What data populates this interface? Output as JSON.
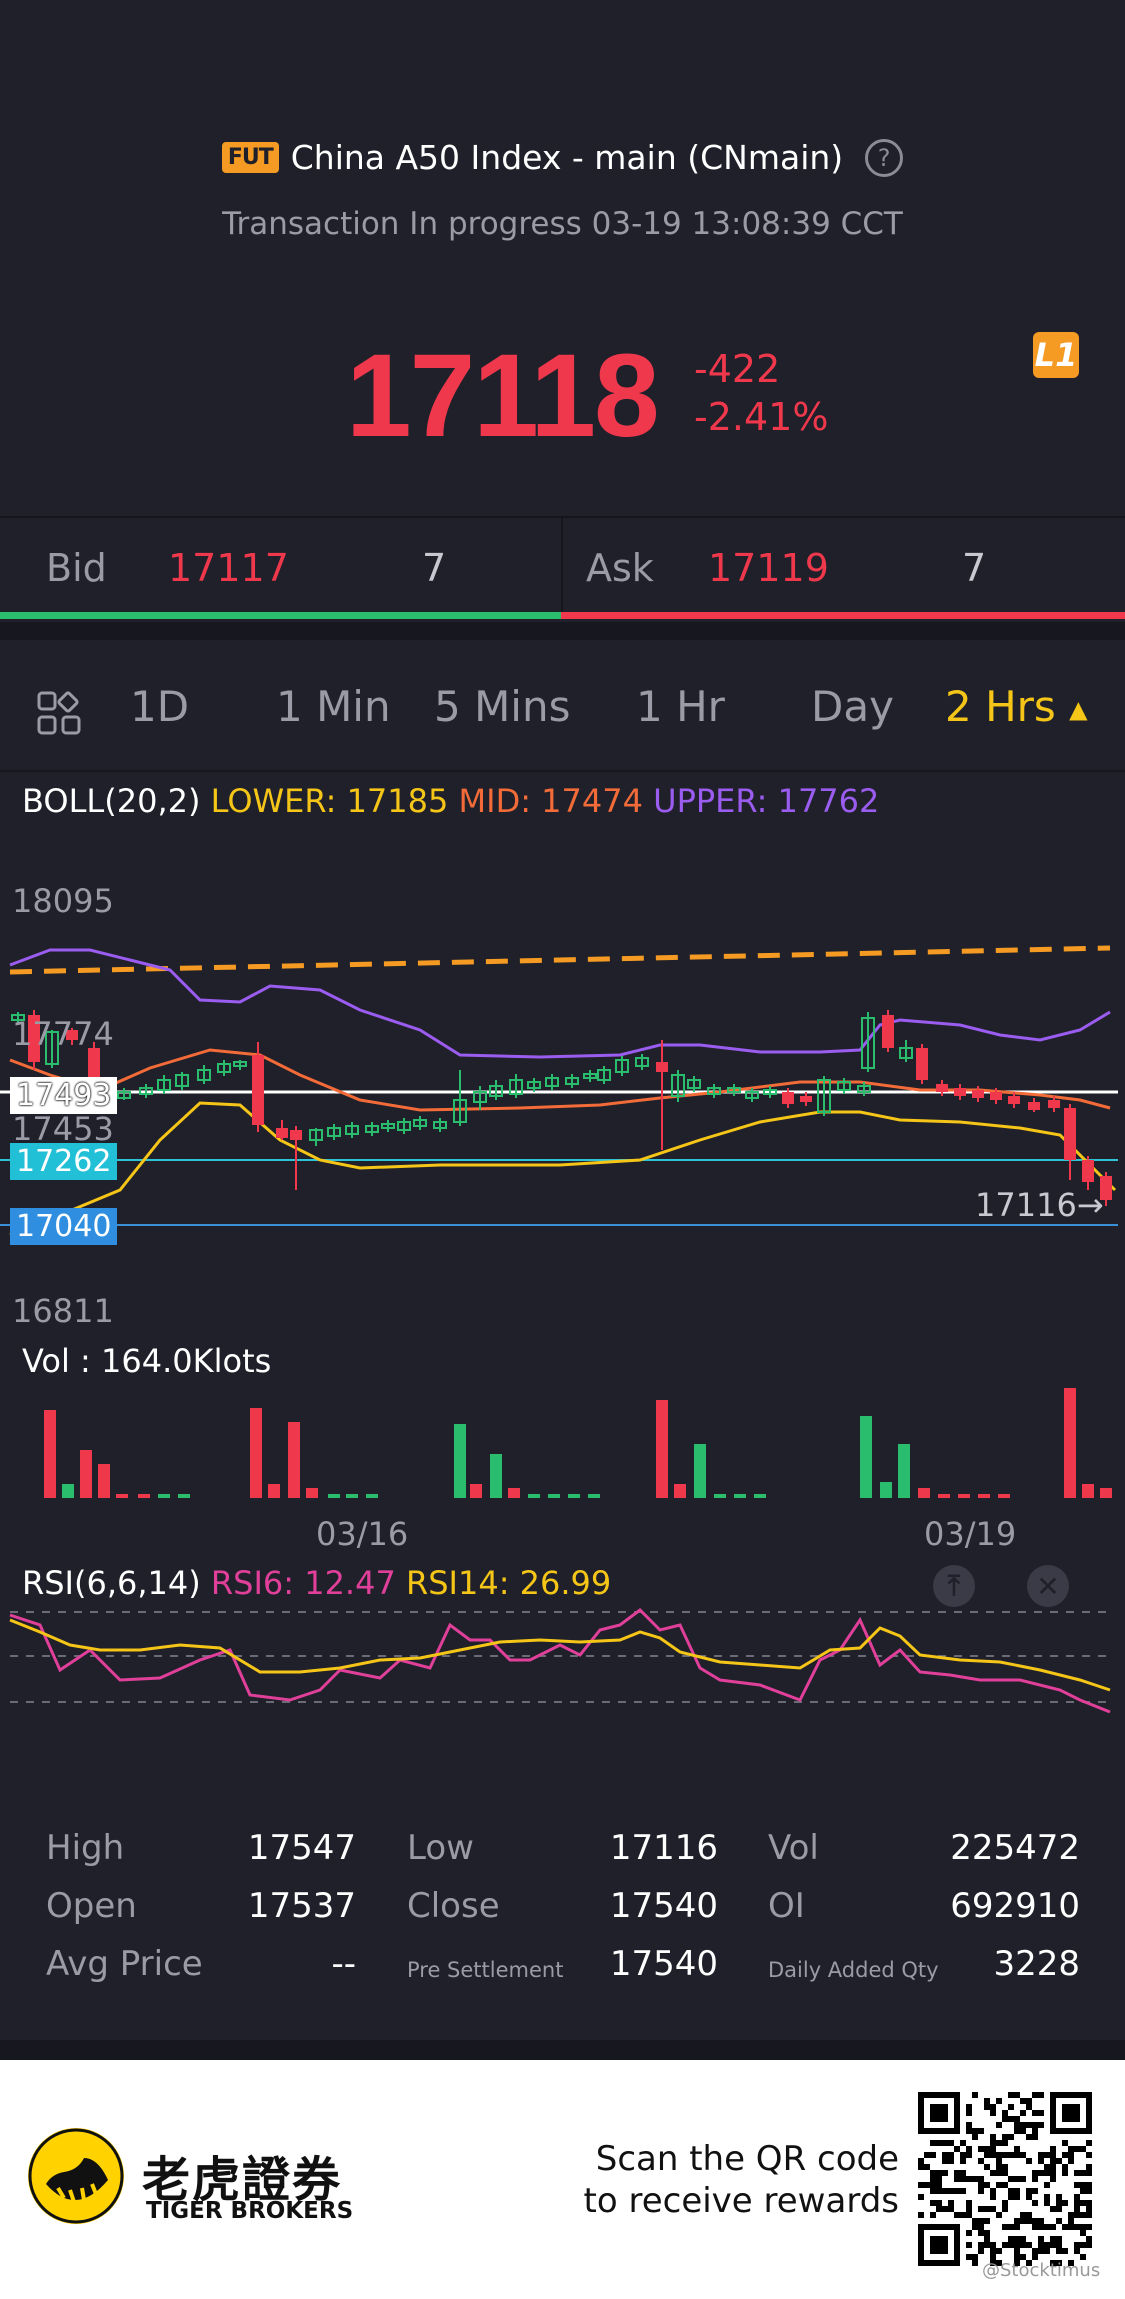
{
  "header": {
    "badge": "FUT",
    "title": "China A50 Index - main (CNmain)",
    "help_icon": "question-circle-icon",
    "status": "Transaction In progress 03-19 13:08:39 CCT"
  },
  "quote": {
    "price": "17118",
    "change": "-422",
    "change_pct": "-2.41%",
    "level_badge": "L1"
  },
  "bid_ask": {
    "bid_label": "Bid",
    "bid_price": "17117",
    "bid_qty": "7",
    "ask_label": "Ask",
    "ask_price": "17119",
    "ask_qty": "7"
  },
  "tabs": {
    "grid_icon": "grid-layout-icon",
    "items": [
      "1D",
      "1 Min",
      "5 Mins",
      "1 Hr",
      "Day",
      "2 Hrs"
    ],
    "active": "2 Hrs"
  },
  "boll": {
    "name": "BOLL(20,2)",
    "lower": "LOWER: 17185",
    "mid": "MID: 17474",
    "upper": "UPPER: 17762"
  },
  "price_axis": {
    "top": "18095",
    "l1": "17774",
    "l2": "17493",
    "l3": "17453",
    "tag_cyan": "17262",
    "tag_blue": "17040",
    "bottom": "16811",
    "last": "17116→"
  },
  "volume": {
    "label": "Vol  : 164.0Klots"
  },
  "dates": [
    "03/16",
    "03/19"
  ],
  "rsi": {
    "name": "RSI(6,6,14)",
    "rsi6": "RSI6: 12.47",
    "rsi14": "RSI14: 26.99",
    "pin_icon": "pin-top-icon",
    "close_icon": "close-icon"
  },
  "stats": {
    "high_label": "High",
    "high": "17547",
    "low_label": "Low",
    "low": "17116",
    "vol_label": "Vol",
    "vol": "225472",
    "open_label": "Open",
    "open": "17537",
    "close_label": "Close",
    "close": "17540",
    "oi_label": "OI",
    "oi": "692910",
    "avg_label": "Avg Price",
    "avg": "--",
    "presettle_label": "Pre Settlement",
    "presettle": "17540",
    "daily_added_label": "Daily Added Qty",
    "daily_added": "3228"
  },
  "footer": {
    "brand_cn": "老虎證券",
    "brand_en": "TIGER BROKERS",
    "scan_line1": "Scan the QR code",
    "scan_line2": "to receive rewards",
    "watermark": "@Stocktimus"
  },
  "colors": {
    "up": "#f0384d",
    "down": "#2bbd6e",
    "boll_upper": "#9b5cf0",
    "boll_mid": "#f26b38",
    "boll_lower": "#f5c518",
    "rsi6": "#e0409a",
    "rsi14": "#f5c518",
    "accent": "#f5c518"
  },
  "chart_data": {
    "type": "candlestick",
    "price_range": [
      16811,
      18095
    ],
    "boll": {
      "lower": 17185,
      "mid": 17474,
      "upper": 17762
    },
    "levels": [
      17493,
      17453,
      17262,
      17040
    ],
    "last_price": 17116,
    "volume_total": "164.0Klots",
    "rsi": {
      "rsi6": 12.47,
      "rsi14": 26.99
    }
  }
}
